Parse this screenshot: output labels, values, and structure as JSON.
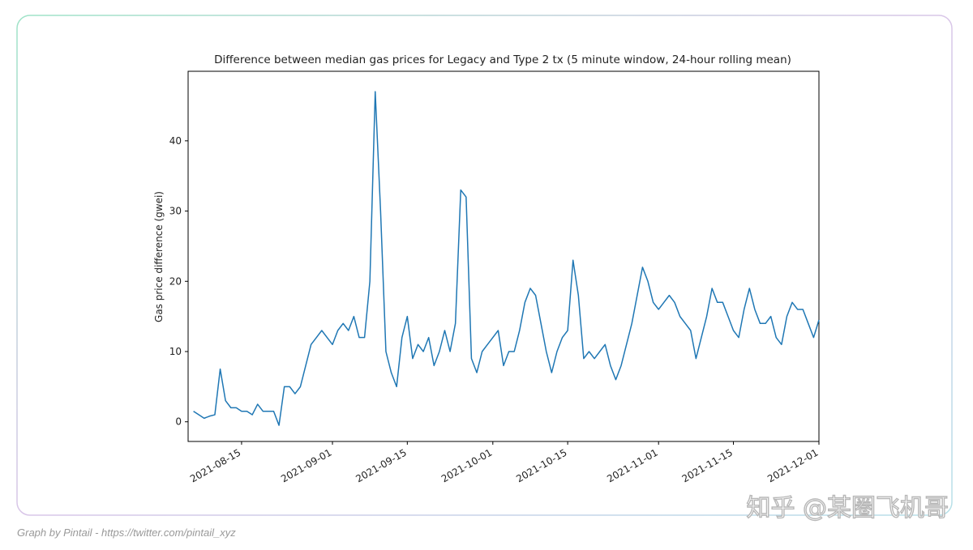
{
  "chart_data": {
    "type": "line",
    "title": "Difference between median gas prices for Legacy and Type 2 tx (5 minute window, 24-hour rolling mean)",
    "y_label": "Gas price difference (gwei)",
    "x": [
      "2021-08-06",
      "2021-08-07",
      "2021-08-08",
      "2021-08-09",
      "2021-08-10",
      "2021-08-11",
      "2021-08-12",
      "2021-08-13",
      "2021-08-14",
      "2021-08-15",
      "2021-08-16",
      "2021-08-17",
      "2021-08-18",
      "2021-08-19",
      "2021-08-20",
      "2021-08-21",
      "2021-08-22",
      "2021-08-23",
      "2021-08-24",
      "2021-08-25",
      "2021-08-26",
      "2021-08-27",
      "2021-08-28",
      "2021-08-29",
      "2021-08-30",
      "2021-08-31",
      "2021-09-01",
      "2021-09-02",
      "2021-09-03",
      "2021-09-04",
      "2021-09-05",
      "2021-09-06",
      "2021-09-07",
      "2021-09-08",
      "2021-09-09",
      "2021-09-10",
      "2021-09-11",
      "2021-09-12",
      "2021-09-13",
      "2021-09-14",
      "2021-09-15",
      "2021-09-16",
      "2021-09-17",
      "2021-09-18",
      "2021-09-19",
      "2021-09-20",
      "2021-09-21",
      "2021-09-22",
      "2021-09-23",
      "2021-09-24",
      "2021-09-25",
      "2021-09-26",
      "2021-09-27",
      "2021-09-28",
      "2021-09-29",
      "2021-09-30",
      "2021-10-01",
      "2021-10-02",
      "2021-10-03",
      "2021-10-04",
      "2021-10-05",
      "2021-10-06",
      "2021-10-07",
      "2021-10-08",
      "2021-10-09",
      "2021-10-10",
      "2021-10-11",
      "2021-10-12",
      "2021-10-13",
      "2021-10-14",
      "2021-10-15",
      "2021-10-16",
      "2021-10-17",
      "2021-10-18",
      "2021-10-19",
      "2021-10-20",
      "2021-10-21",
      "2021-10-22",
      "2021-10-23",
      "2021-10-24",
      "2021-10-25",
      "2021-10-26",
      "2021-10-27",
      "2021-10-28",
      "2021-10-29",
      "2021-10-30",
      "2021-10-31",
      "2021-11-01",
      "2021-11-02",
      "2021-11-03",
      "2021-11-04",
      "2021-11-05",
      "2021-11-06",
      "2021-11-07",
      "2021-11-08",
      "2021-11-09",
      "2021-11-10",
      "2021-11-11",
      "2021-11-12",
      "2021-11-13",
      "2021-11-14",
      "2021-11-15",
      "2021-11-16",
      "2021-11-17",
      "2021-11-18",
      "2021-11-19",
      "2021-11-20",
      "2021-11-21",
      "2021-11-22",
      "2021-11-23",
      "2021-11-24",
      "2021-11-25",
      "2021-11-26",
      "2021-11-27",
      "2021-11-28",
      "2021-11-29",
      "2021-11-30",
      "2021-12-01"
    ],
    "series": [
      {
        "name": "gas price difference",
        "color": "#1f77b4",
        "values": [
          1.5,
          1,
          0.5,
          0.8,
          1,
          7.5,
          3,
          2,
          2,
          1.5,
          1.5,
          1,
          2.5,
          1.5,
          1.5,
          1.5,
          -0.5,
          5,
          5,
          4,
          5,
          8,
          11,
          12,
          13,
          12,
          11,
          13,
          14,
          13,
          15,
          12,
          12,
          20,
          47,
          30,
          10,
          7,
          5,
          12,
          15,
          9,
          11,
          10,
          12,
          8,
          10,
          13,
          10,
          14,
          33,
          32,
          9,
          7,
          10,
          11,
          12,
          13,
          8,
          10,
          10,
          13,
          17,
          19,
          18,
          14,
          10,
          7,
          10,
          12,
          13,
          23,
          18,
          9,
          10,
          9,
          10,
          11,
          8,
          6,
          8,
          11,
          14,
          18,
          22,
          20,
          17,
          16,
          17,
          18,
          17,
          15,
          14,
          13,
          9,
          12,
          15,
          19,
          17,
          17,
          15,
          13,
          12,
          16,
          19,
          16,
          14,
          14,
          15,
          12,
          11,
          15,
          17,
          16,
          16,
          14,
          12,
          14.5
        ]
      }
    ],
    "xlim": [
      "2021-08-05",
      "2021-12-01"
    ],
    "xticks": [
      "2021-08-15",
      "2021-09-01",
      "2021-09-15",
      "2021-10-01",
      "2021-10-15",
      "2021-11-01",
      "2021-11-15",
      "2021-12-01"
    ],
    "ylim": [
      -2.8,
      49.9
    ],
    "yticks": [
      0,
      10,
      20,
      30,
      40
    ]
  },
  "watermark": "知乎 @某圈飞机哥",
  "credit": "Graph by Pintail - https://twitter.com/pintail_xyz"
}
